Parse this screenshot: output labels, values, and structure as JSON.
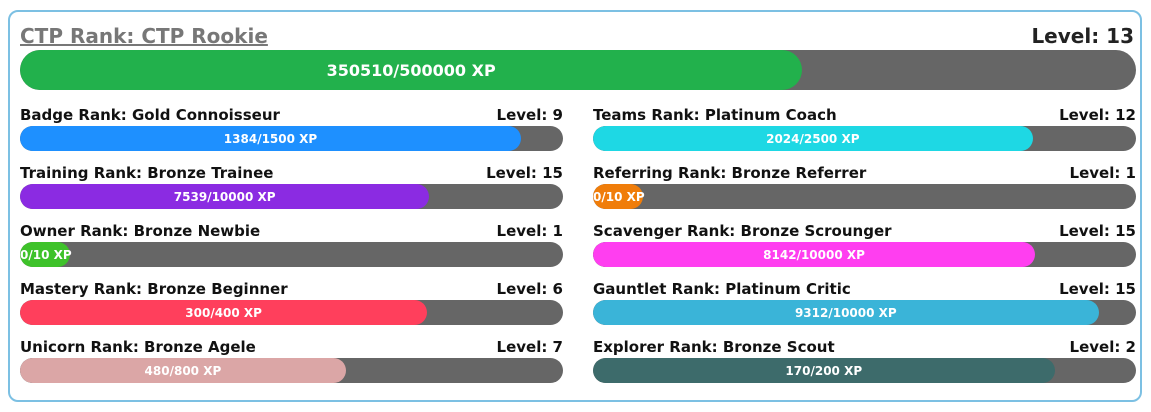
{
  "main": {
    "title": "CTP Rank: CTP Rookie",
    "level": "Level: 13",
    "xp_text": "350510/500000 XP",
    "progress": 0.70102,
    "color": "#22b14c"
  },
  "ranks": [
    {
      "label": "Badge Rank: Gold Connoisseur",
      "level": "Level: 9",
      "xp_text": "1384/1500 XP",
      "progress": 0.9227,
      "color": "#1e90ff"
    },
    {
      "label": "Teams Rank: Platinum Coach",
      "level": "Level: 12",
      "xp_text": "2024/2500 XP",
      "progress": 0.8096,
      "color": "#1ed8e4"
    },
    {
      "label": "Training Rank: Bronze Trainee",
      "level": "Level: 15",
      "xp_text": "7539/10000 XP",
      "progress": 0.7539,
      "color": "#8b2be2"
    },
    {
      "label": "Referring Rank: Bronze Referrer",
      "level": "Level: 1",
      "xp_text": "0/10 XP",
      "progress": 0,
      "color": "#f07d0a"
    },
    {
      "label": "Owner Rank: Bronze Newbie",
      "level": "Level: 1",
      "xp_text": "0/10 XP",
      "progress": 0,
      "color": "#3ec22a"
    },
    {
      "label": "Scavenger Rank: Bronze Scrounger",
      "level": "Level: 15",
      "xp_text": "8142/10000 XP",
      "progress": 0.8142,
      "color": "#ff3ef0"
    },
    {
      "label": "Mastery Rank: Bronze Beginner",
      "level": "Level: 6",
      "xp_text": "300/400 XP",
      "progress": 0.75,
      "color": "#ff3f5c"
    },
    {
      "label": "Gauntlet Rank: Platinum Critic",
      "level": "Level: 15",
      "xp_text": "9312/10000 XP",
      "progress": 0.9312,
      "color": "#3ab4d8"
    },
    {
      "label": "Unicorn Rank: Bronze Agele",
      "level": "Level: 7",
      "xp_text": "480/800 XP",
      "progress": 0.6,
      "color": "#dba6a6"
    },
    {
      "label": "Explorer Rank: Bronze Scout",
      "level": "Level: 2",
      "xp_text": "170/200 XP",
      "progress": 0.85,
      "color": "#3d6b6b"
    }
  ]
}
